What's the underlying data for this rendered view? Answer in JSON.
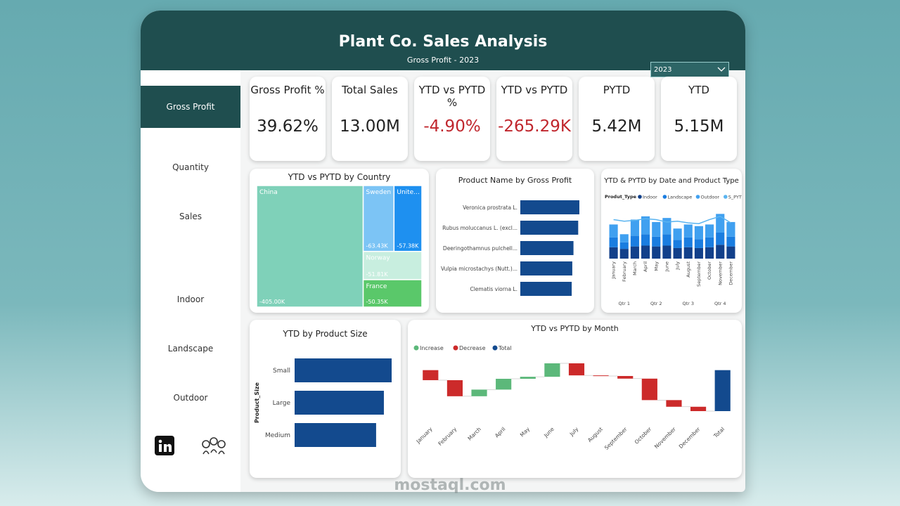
{
  "header": {
    "title": "Plant Co. Sales Analysis",
    "subtitle": "Gross Profit - 2023",
    "year_filter": "2023"
  },
  "nav": {
    "items": [
      "Gross Profit",
      "Quantity",
      "Sales",
      "Indoor",
      "Landscape",
      "Outdoor"
    ],
    "active": 0
  },
  "kpis": [
    {
      "label": "Gross Profit %",
      "value": "39.62%",
      "color": "#222222"
    },
    {
      "label": "Total Sales",
      "value": "13.00M",
      "color": "#222222"
    },
    {
      "label": "YTD vs PYTD %",
      "value": "-4.90%",
      "color": "#c0262d"
    },
    {
      "label": "YTD vs PYTD",
      "value": "-265.29K",
      "color": "#c0262d"
    },
    {
      "label": "PYTD",
      "value": "5.42M",
      "color": "#222222"
    },
    {
      "label": "YTD",
      "value": "5.15M",
      "color": "#222222"
    }
  ],
  "chart_data": [
    {
      "type": "treemap",
      "title": "YTD vs PYTD by Country",
      "categories": [
        "China",
        "Sweden",
        "Unite...",
        "Norway",
        "France"
      ],
      "values": [
        -405.0,
        -63.43,
        -57.38,
        -51.81,
        -50.35
      ],
      "value_labels": [
        "-405.00K",
        "-63.43K",
        "-57.38K",
        "-51.81K",
        "-50.35K"
      ],
      "colors": [
        "#7fd1b9",
        "#7cc4f5",
        "#1e90f0",
        "#c8eedf",
        "#5ac86a"
      ]
    },
    {
      "type": "bar",
      "orientation": "horizontal",
      "title": "Product Name by Gross Profit",
      "categories": [
        "Veronica prostrata L.",
        "Rubus moluccanus L. (excl...",
        "Deeringothamnus pulchell...",
        "Vulpia microstachys (Nutt.)...",
        "Clematis viorna L."
      ],
      "values": [
        100,
        98,
        90,
        88,
        87
      ],
      "color": "#134a8e"
    },
    {
      "type": "stacked_bar_line",
      "title": "YTD & PYTD by Date and Product Type",
      "legend_title": "Produt_Type",
      "categories": [
        "January",
        "February",
        "March",
        "April",
        "May",
        "June",
        "July",
        "August",
        "September",
        "October",
        "November",
        "December"
      ],
      "groups": [
        "Qtr 1",
        "Qtr 2",
        "Qtr 3",
        "Qtr 4"
      ],
      "series": [
        {
          "name": "Indoor",
          "color": "#12408a",
          "values": [
            14,
            12,
            15,
            16,
            15,
            16,
            13,
            14,
            13,
            14,
            17,
            15
          ]
        },
        {
          "name": "Landscape",
          "color": "#1a7de0",
          "values": [
            12,
            8,
            13,
            14,
            12,
            14,
            10,
            12,
            11,
            12,
            15,
            12
          ]
        },
        {
          "name": "Outdoor",
          "color": "#40a0f0",
          "values": [
            16,
            10,
            20,
            22,
            18,
            20,
            14,
            16,
            16,
            16,
            23,
            18
          ]
        },
        {
          "name": "S_PYTD",
          "color": "#5ab4f0",
          "kind": "line",
          "values": [
            48,
            46,
            47,
            49,
            48,
            45,
            46,
            44,
            43,
            48,
            52,
            44
          ]
        }
      ]
    },
    {
      "type": "bar",
      "orientation": "horizontal",
      "title": "YTD by Product Size",
      "y_label": "Product_Size",
      "categories": [
        "Small",
        "Large",
        "Medium"
      ],
      "values": [
        100,
        92,
        84
      ],
      "color": "#134a8e"
    },
    {
      "type": "waterfall",
      "title": "YTD vs PYTD by Month",
      "categories": [
        "January",
        "February",
        "March",
        "April",
        "May",
        "June",
        "July",
        "August",
        "September",
        "October",
        "November",
        "December"
      ],
      "values": [
        -65,
        -104,
        43,
        70,
        13,
        87,
        -78,
        -4,
        -17,
        -139,
        -43,
        -28.29
      ],
      "total": -265.29,
      "total_label": "Total",
      "legend": [
        {
          "name": "Increase",
          "color": "#5cb87a"
        },
        {
          "name": "Decrease",
          "color": "#cc2a2a"
        },
        {
          "name": "Total",
          "color": "#134a8e"
        }
      ]
    }
  ],
  "watermark": "mostaql.com"
}
